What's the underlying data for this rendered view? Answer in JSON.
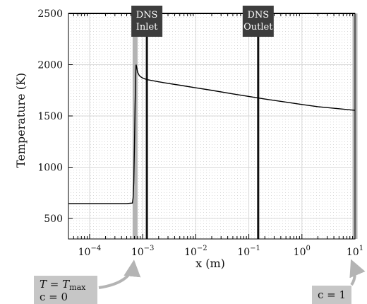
{
  "chart_data": {
    "type": "line",
    "xlabel": "x (m)",
    "ylabel": "Temperature (K)",
    "xscale": "log",
    "xlim": [
      4e-05,
      10
    ],
    "ylim": [
      300,
      2500
    ],
    "grid": true,
    "yticks": [
      500,
      1000,
      1500,
      2000,
      2500
    ],
    "xticks": [
      {
        "value": 0.0001,
        "base": "10",
        "exp": "−4"
      },
      {
        "value": 0.001,
        "base": "10",
        "exp": "−3"
      },
      {
        "value": 0.01,
        "base": "10",
        "exp": "−2"
      },
      {
        "value": 0.1,
        "base": "10",
        "exp": "−1"
      },
      {
        "value": 1,
        "base": "10",
        "exp": "0"
      },
      {
        "value": 10,
        "base": "10",
        "exp": "1"
      }
    ],
    "series": [
      {
        "x": [
          4e-05,
          0.0005,
          0.00064,
          0.00066,
          0.00068,
          0.0007,
          0.00072,
          0.00074,
          0.00075,
          0.00077,
          0.0008,
          0.00085,
          0.0009,
          0.001,
          0.0012,
          0.0015,
          0.002,
          0.003,
          0.005,
          0.01,
          0.02,
          0.05,
          0.1,
          0.2,
          0.5,
          1,
          2,
          5,
          10
        ],
        "y": [
          645,
          645,
          650,
          700,
          850,
          1200,
          1600,
          1900,
          2000,
          1980,
          1930,
          1900,
          1885,
          1870,
          1855,
          1845,
          1833,
          1818,
          1800,
          1775,
          1750,
          1715,
          1690,
          1665,
          1635,
          1612,
          1590,
          1570,
          1555
        ],
        "color": "#000000"
      }
    ],
    "markers": [
      {
        "x": 0.00072,
        "style": "gray-band",
        "color": "#b4b4b4"
      },
      {
        "x": 0.0012,
        "style": "black-line",
        "label_lines": [
          "DNS",
          "Inlet"
        ]
      },
      {
        "x": 0.15,
        "style": "black-line",
        "label_lines": [
          "DNS",
          "Outlet"
        ]
      },
      {
        "x": 10,
        "style": "gray-band",
        "color": "#b4b4b4"
      }
    ],
    "annotations": [
      {
        "target_x": 0.00072,
        "var": "T",
        "equals": " = ",
        "rhs": "T",
        "rhs_sub": "max",
        "line2": "c = 0"
      },
      {
        "target_x": 10,
        "line": "c = 1"
      }
    ]
  }
}
